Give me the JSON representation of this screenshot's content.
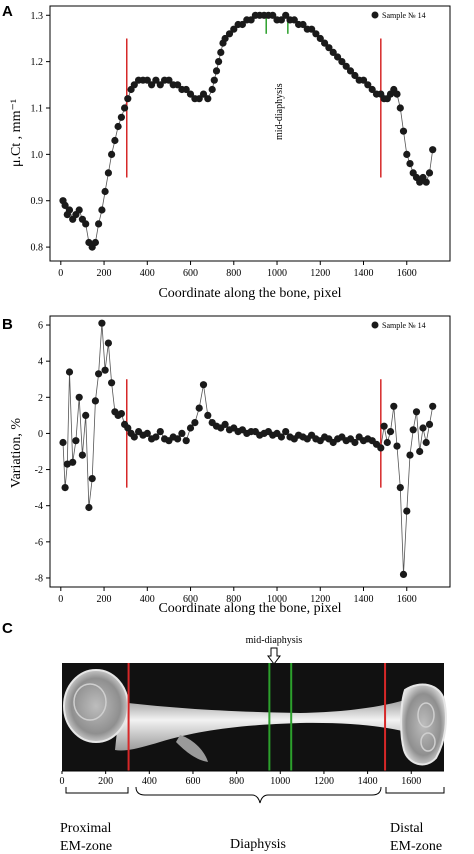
{
  "colors": {
    "marker": "#1a1a1a",
    "line": "#555555",
    "zone_boundary": "#d62728",
    "mid_diaphysis": "#2ca02c",
    "xray_background": "#111111",
    "bone": "#dcdcdc"
  },
  "panel_c": {
    "letter": "C",
    "annotation": "mid-diaphysis",
    "x_ticks": [
      "0",
      "200",
      "400",
      "600",
      "800",
      "1000",
      "1200",
      "1400",
      "1600"
    ],
    "zones": {
      "proximal": [
        "Proximal",
        "EM-zone"
      ],
      "diaphysis": "Diaphysis",
      "distal": [
        "Distal",
        "EM-zone"
      ]
    },
    "xlim": [
      0,
      1750
    ]
  },
  "chart_data": [
    {
      "panel": "A",
      "type": "scatter",
      "ylabel": "μ.Ct , mm⁻¹",
      "xlabel": "Coordinate along the bone, pixel",
      "legend": "Sample № 14",
      "legend_position": "top-right",
      "annotation": "mid-diaphysis",
      "xlim": [
        -50,
        1800
      ],
      "ylim": [
        0.77,
        1.32
      ],
      "x_ticks": [
        0,
        200,
        400,
        600,
        800,
        1000,
        1200,
        1400,
        1600
      ],
      "y_ticks": [
        "0.8",
        "0.9",
        "1.0",
        "1.1",
        "1.2",
        "1.3"
      ],
      "red_lines_x": [
        305,
        1480
      ],
      "green_lines_x": [
        950,
        1050
      ],
      "red_line_range": [
        0.95,
        1.25
      ],
      "green_line_range": [
        1.26,
        1.3
      ],
      "x": [
        10,
        20,
        30,
        40,
        55,
        70,
        85,
        100,
        115,
        130,
        145,
        160,
        175,
        190,
        205,
        220,
        235,
        250,
        265,
        280,
        295,
        310,
        325,
        340,
        360,
        380,
        400,
        420,
        440,
        460,
        480,
        500,
        520,
        540,
        560,
        580,
        600,
        620,
        640,
        660,
        680,
        700,
        710,
        720,
        730,
        740,
        750,
        760,
        780,
        800,
        820,
        840,
        860,
        880,
        900,
        920,
        940,
        960,
        980,
        1000,
        1020,
        1040,
        1060,
        1080,
        1100,
        1120,
        1140,
        1160,
        1180,
        1200,
        1220,
        1240,
        1260,
        1280,
        1300,
        1320,
        1340,
        1360,
        1380,
        1400,
        1420,
        1440,
        1460,
        1480,
        1495,
        1510,
        1525,
        1540,
        1555,
        1570,
        1585,
        1600,
        1615,
        1630,
        1645,
        1660,
        1675,
        1690,
        1705,
        1720
      ],
      "y": [
        0.9,
        0.89,
        0.87,
        0.88,
        0.86,
        0.87,
        0.88,
        0.86,
        0.85,
        0.81,
        0.8,
        0.81,
        0.85,
        0.88,
        0.92,
        0.96,
        1.0,
        1.03,
        1.06,
        1.08,
        1.1,
        1.12,
        1.14,
        1.15,
        1.16,
        1.16,
        1.16,
        1.15,
        1.16,
        1.15,
        1.16,
        1.16,
        1.15,
        1.15,
        1.14,
        1.14,
        1.13,
        1.12,
        1.12,
        1.13,
        1.12,
        1.14,
        1.16,
        1.18,
        1.2,
        1.22,
        1.24,
        1.25,
        1.26,
        1.27,
        1.28,
        1.28,
        1.29,
        1.29,
        1.3,
        1.3,
        1.3,
        1.3,
        1.3,
        1.29,
        1.29,
        1.3,
        1.29,
        1.29,
        1.28,
        1.28,
        1.27,
        1.27,
        1.26,
        1.25,
        1.24,
        1.23,
        1.22,
        1.21,
        1.2,
        1.19,
        1.18,
        1.17,
        1.16,
        1.16,
        1.15,
        1.14,
        1.13,
        1.13,
        1.12,
        1.12,
        1.13,
        1.14,
        1.13,
        1.1,
        1.05,
        1.0,
        0.98,
        0.96,
        0.95,
        0.94,
        0.95,
        0.94,
        0.96,
        1.01
      ]
    },
    {
      "panel": "B",
      "type": "scatter",
      "ylabel": "Variation, %",
      "xlabel": "Coordinate along the bone, pixel",
      "legend": "Sample № 14",
      "legend_position": "top-right",
      "xlim": [
        -50,
        1800
      ],
      "ylim": [
        -8.5,
        6.5
      ],
      "x_ticks": [
        0,
        200,
        400,
        600,
        800,
        1000,
        1200,
        1400,
        1600
      ],
      "y_ticks": [
        -8,
        -6,
        -4,
        -2,
        0,
        2,
        4,
        6
      ],
      "red_lines_x": [
        305,
        1480
      ],
      "red_line_range": [
        -3,
        3
      ],
      "x": [
        10,
        20,
        30,
        40,
        55,
        70,
        85,
        100,
        115,
        130,
        145,
        160,
        175,
        190,
        205,
        220,
        235,
        250,
        265,
        280,
        295,
        310,
        325,
        340,
        360,
        380,
        400,
        420,
        440,
        460,
        480,
        500,
        520,
        540,
        560,
        580,
        600,
        620,
        640,
        660,
        680,
        700,
        720,
        740,
        760,
        780,
        800,
        820,
        840,
        860,
        880,
        900,
        920,
        940,
        960,
        980,
        1000,
        1020,
        1040,
        1060,
        1080,
        1100,
        1120,
        1140,
        1160,
        1180,
        1200,
        1220,
        1240,
        1260,
        1280,
        1300,
        1320,
        1340,
        1360,
        1380,
        1400,
        1420,
        1440,
        1460,
        1480,
        1495,
        1510,
        1525,
        1540,
        1555,
        1570,
        1585,
        1600,
        1615,
        1630,
        1645,
        1660,
        1675,
        1690,
        1705,
        1720
      ],
      "y": [
        -0.5,
        -3.0,
        -1.7,
        3.4,
        -1.6,
        -0.4,
        2.0,
        -1.2,
        1.0,
        -4.1,
        -2.5,
        1.8,
        3.3,
        6.1,
        3.5,
        5.0,
        2.8,
        1.2,
        1.0,
        1.1,
        0.5,
        0.3,
        0.0,
        -0.2,
        0.1,
        -0.1,
        0.0,
        -0.3,
        -0.2,
        0.1,
        -0.3,
        -0.4,
        -0.2,
        -0.3,
        0.0,
        -0.4,
        0.3,
        0.6,
        1.4,
        2.7,
        1.0,
        0.6,
        0.4,
        0.3,
        0.5,
        0.2,
        0.3,
        0.1,
        0.2,
        0.0,
        0.1,
        0.1,
        -0.1,
        0.0,
        0.1,
        -0.1,
        0.0,
        -0.2,
        0.1,
        -0.2,
        -0.3,
        -0.1,
        -0.2,
        -0.3,
        -0.1,
        -0.3,
        -0.4,
        -0.2,
        -0.3,
        -0.5,
        -0.3,
        -0.2,
        -0.4,
        -0.3,
        -0.5,
        -0.2,
        -0.4,
        -0.3,
        -0.4,
        -0.6,
        -0.8,
        0.4,
        -0.5,
        0.1,
        1.5,
        -0.7,
        -3.0,
        -7.8,
        -4.3,
        -1.2,
        0.2,
        1.2,
        -1.0,
        0.3,
        -0.5,
        0.5,
        1.5
      ]
    }
  ]
}
